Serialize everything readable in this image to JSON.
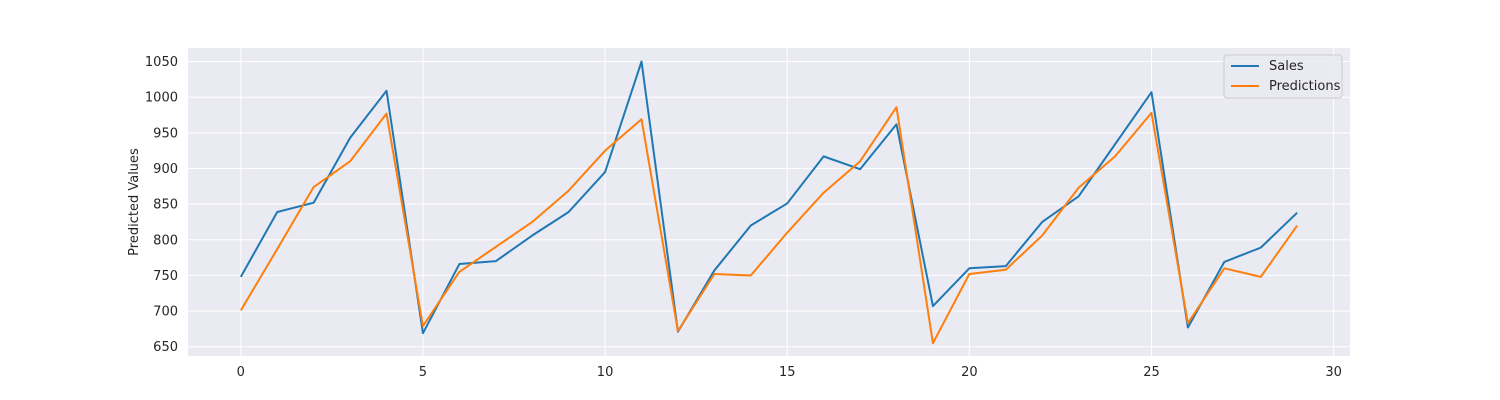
{
  "chart_data": {
    "type": "line",
    "title": "",
    "xlabel": "",
    "ylabel": "Predicted Values",
    "x": [
      0,
      1,
      2,
      3,
      4,
      5,
      6,
      7,
      8,
      9,
      10,
      11,
      12,
      13,
      14,
      15,
      16,
      17,
      18,
      19,
      20,
      21,
      22,
      23,
      24,
      25,
      26,
      27,
      28,
      29
    ],
    "series": [
      {
        "name": "Sales",
        "color": "#1f77b4",
        "values": [
          748,
          839,
          852,
          943,
          1009,
          669,
          766,
          770,
          806,
          839,
          895,
          1050,
          671,
          757,
          820,
          851,
          917,
          899,
          962,
          707,
          760,
          763,
          825,
          861,
          934,
          1007,
          677,
          769,
          789,
          838
        ]
      },
      {
        "name": "Predictions",
        "color": "#ff7f0e",
        "values": [
          701,
          787,
          874,
          910,
          977,
          679,
          755,
          790,
          825,
          869,
          925,
          969,
          672,
          752,
          750,
          810,
          866,
          910,
          986,
          655,
          752,
          758,
          806,
          873,
          917,
          978,
          683,
          760,
          748,
          820
        ]
      }
    ],
    "xlim": [
      -1.45,
      30.45
    ],
    "ylim": [
      637,
      1069
    ],
    "xticks": [
      0,
      5,
      10,
      15,
      20,
      25,
      30
    ],
    "xtick_labels": [
      "0",
      "5",
      "10",
      "15",
      "20",
      "25",
      "30"
    ],
    "yticks": [
      650,
      700,
      750,
      800,
      850,
      900,
      950,
      1000,
      1050
    ],
    "ytick_labels": [
      "650",
      "700",
      "750",
      "800",
      "850",
      "900",
      "950",
      "1000",
      "1050"
    ],
    "grid": true,
    "background": "#eaeaf2",
    "legend_position": "top-right"
  }
}
